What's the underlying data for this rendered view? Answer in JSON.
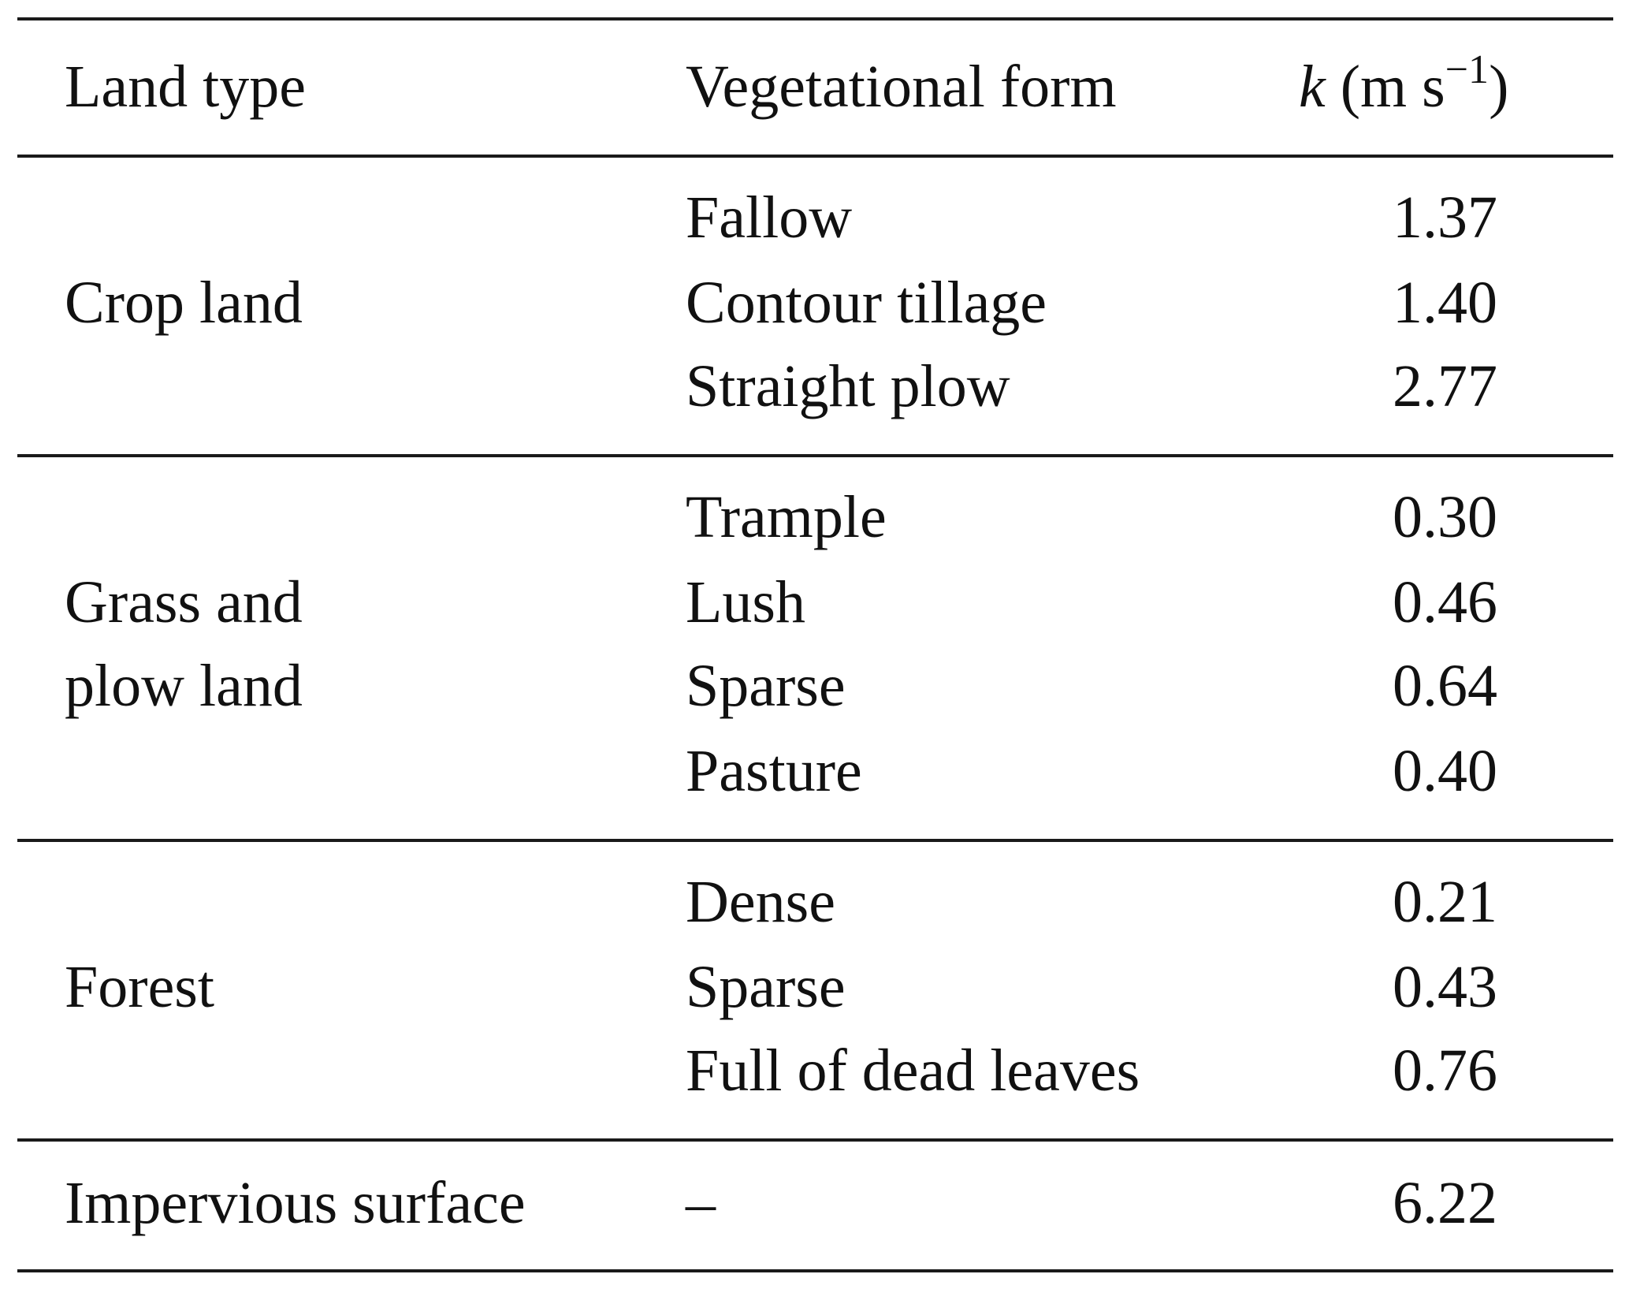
{
  "table": {
    "headers": {
      "land_type": "Land type",
      "veg_form": "Vegetational form",
      "k_symbol": "k",
      "k_unit_open": "(m s",
      "k_unit_exp": "−1",
      "k_unit_close": ")"
    },
    "groups": [
      {
        "land_type": "Crop land",
        "rows": [
          {
            "form": "Fallow",
            "k": "1.37"
          },
          {
            "form": "Contour tillage",
            "k": "1.40"
          },
          {
            "form": "Straight plow",
            "k": "2.77"
          }
        ]
      },
      {
        "land_type_line1": "Grass and",
        "land_type_line2": "plow land",
        "rows": [
          {
            "form": "Trample",
            "k": "0.30"
          },
          {
            "form": "Lush",
            "k": "0.46"
          },
          {
            "form": "Sparse",
            "k": "0.64"
          },
          {
            "form": "Pasture",
            "k": "0.40"
          }
        ]
      },
      {
        "land_type": "Forest",
        "rows": [
          {
            "form": "Dense",
            "k": "0.21"
          },
          {
            "form": "Sparse",
            "k": "0.43"
          },
          {
            "form": "Full of dead leaves",
            "k": "0.76"
          }
        ]
      },
      {
        "land_type": "Impervious surface",
        "rows": [
          {
            "form": "–",
            "k": "6.22"
          }
        ]
      }
    ]
  }
}
